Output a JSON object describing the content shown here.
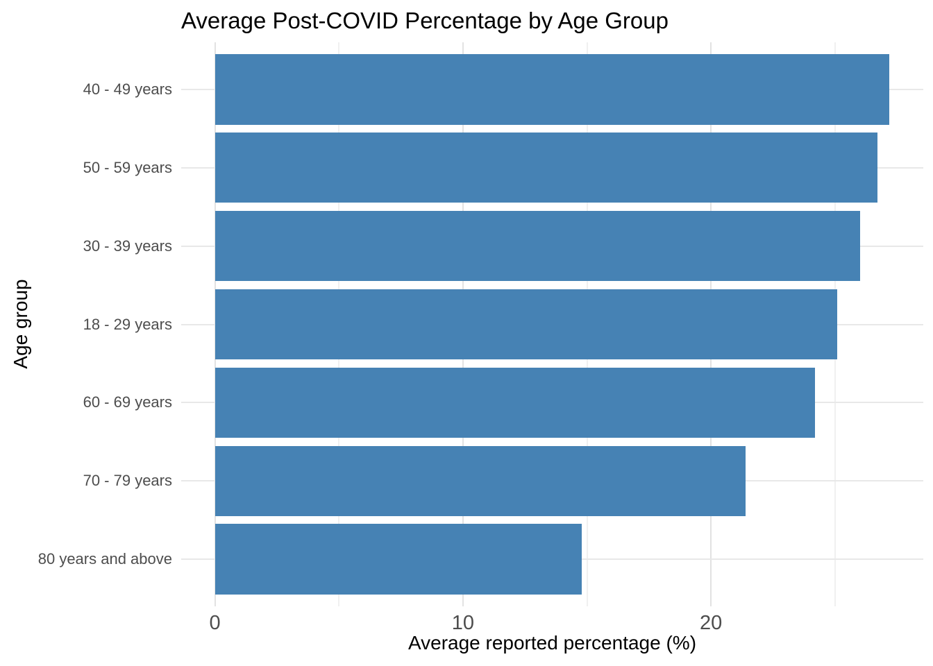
{
  "chart_data": {
    "type": "bar",
    "orientation": "horizontal",
    "title": "Average Post-COVID Percentage by Age Group",
    "xlabel": "Average reported percentage (%)",
    "ylabel": "Age group",
    "categories": [
      "40 - 49 years",
      "50 - 59 years",
      "30 - 39 years",
      "18 - 29 years",
      "60 - 69 years",
      "70 - 79 years",
      "80 years and above"
    ],
    "values": [
      27.2,
      26.7,
      26.0,
      25.1,
      24.2,
      21.4,
      14.8
    ],
    "xlim": [
      -1.36,
      28.56
    ],
    "x_major_ticks": [
      0,
      10,
      20
    ],
    "x_minor_ticks": [
      5,
      15,
      25
    ],
    "x_tick_labels": [
      "0",
      "10",
      "20"
    ],
    "grid": true,
    "legend": false,
    "bar_color": "#4682B4",
    "major_grid_color": "#e2e2e2",
    "minor_grid_color": "#f0f0f0",
    "horizontal_grid_color": "#e8e8e8",
    "axis_text_color": "#4d4d4d",
    "title_color": "#000000",
    "background_color": "#ffffff"
  }
}
